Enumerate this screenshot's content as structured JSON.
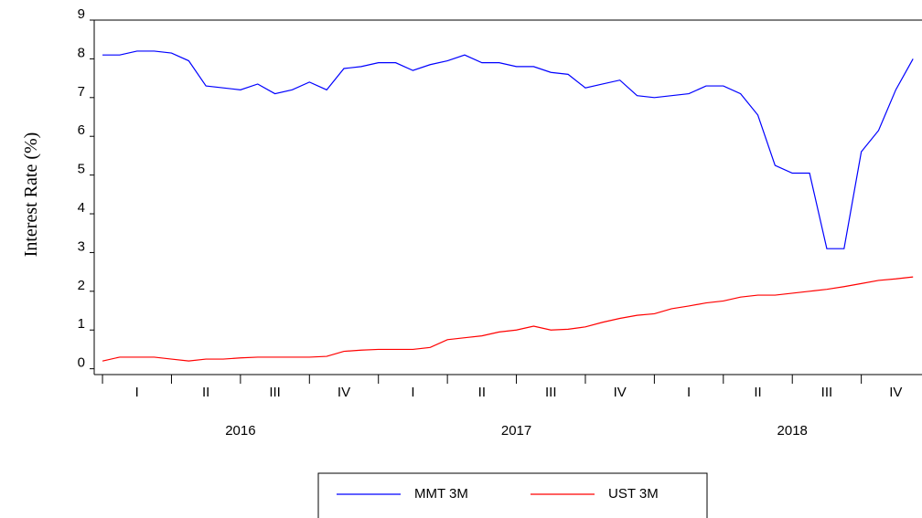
{
  "chart_data": {
    "type": "line",
    "y_label": "Interest Rate (%)",
    "x": [
      2016,
      2016.0625,
      2016.125,
      2016.1875,
      2016.25,
      2016.3125,
      2016.375,
      2016.4375,
      2016.5,
      2016.5625,
      2016.625,
      2016.6875,
      2016.75,
      2016.8125,
      2016.875,
      2016.9375,
      2017,
      2017.0625,
      2017.125,
      2017.1875,
      2017.25,
      2017.3125,
      2017.375,
      2017.4375,
      2017.5,
      2017.5625,
      2017.625,
      2017.6875,
      2017.75,
      2017.8125,
      2017.875,
      2017.9375,
      2018,
      2018.0625,
      2018.125,
      2018.1875,
      2018.25,
      2018.3125,
      2018.375,
      2018.4375,
      2018.5,
      2018.5625,
      2018.625,
      2018.6875,
      2018.75,
      2018.8125,
      2018.875,
      2018.9375
    ],
    "series": [
      {
        "name": "MMT 3M",
        "color": "#0000ff",
        "values": [
          8.1,
          8.1,
          8.2,
          8.2,
          8.15,
          7.95,
          7.3,
          7.25,
          7.2,
          7.35,
          7.1,
          7.2,
          7.4,
          7.2,
          7.75,
          7.8,
          7.9,
          7.9,
          7.7,
          7.85,
          7.95,
          8.1,
          7.9,
          7.9,
          7.8,
          7.8,
          7.65,
          7.6,
          7.25,
          7.35,
          7.45,
          7.05,
          7.0,
          7.05,
          7.1,
          7.3,
          7.3,
          7.1,
          6.55,
          5.25,
          5.05,
          5.05,
          3.1,
          3.1,
          5.6,
          6.15,
          7.2,
          8.0
        ]
      },
      {
        "name": "UST 3M",
        "color": "#ff0000",
        "values": [
          0.2,
          0.3,
          0.3,
          0.3,
          0.25,
          0.2,
          0.25,
          0.25,
          0.28,
          0.3,
          0.3,
          0.3,
          0.3,
          0.32,
          0.45,
          0.48,
          0.5,
          0.5,
          0.5,
          0.55,
          0.75,
          0.8,
          0.85,
          0.95,
          1.0,
          1.1,
          1.0,
          1.02,
          1.08,
          1.2,
          1.3,
          1.38,
          1.42,
          1.55,
          1.62,
          1.7,
          1.75,
          1.85,
          1.9,
          1.9,
          1.95,
          2.0,
          2.05,
          2.12,
          2.2,
          2.28,
          2.32,
          2.37
        ]
      }
    ],
    "xlim": [
      2015.97,
      2018.97
    ],
    "xticks": [
      {
        "value": 2016.125,
        "label": "I"
      },
      {
        "value": 2016.375,
        "label": "II"
      },
      {
        "value": 2016.625,
        "label": "III"
      },
      {
        "value": 2016.875,
        "label": "IV"
      },
      {
        "value": 2017.125,
        "label": "I"
      },
      {
        "value": 2017.375,
        "label": "II"
      },
      {
        "value": 2017.625,
        "label": "III"
      },
      {
        "value": 2017.875,
        "label": "IV"
      },
      {
        "value": 2018.125,
        "label": "I"
      },
      {
        "value": 2018.375,
        "label": "II"
      },
      {
        "value": 2018.625,
        "label": "III"
      },
      {
        "value": 2018.875,
        "label": "IV"
      }
    ],
    "x_groups": [
      {
        "value": 2016.5,
        "label": "2016"
      },
      {
        "value": 2017.5,
        "label": "2017"
      },
      {
        "value": 2018.5,
        "label": "2018"
      }
    ],
    "ylim": [
      -0.15,
      9
    ],
    "yticks": [
      0,
      1,
      2,
      3,
      4,
      5,
      6,
      7,
      8,
      9
    ],
    "grid": false,
    "legend": "bottom"
  }
}
